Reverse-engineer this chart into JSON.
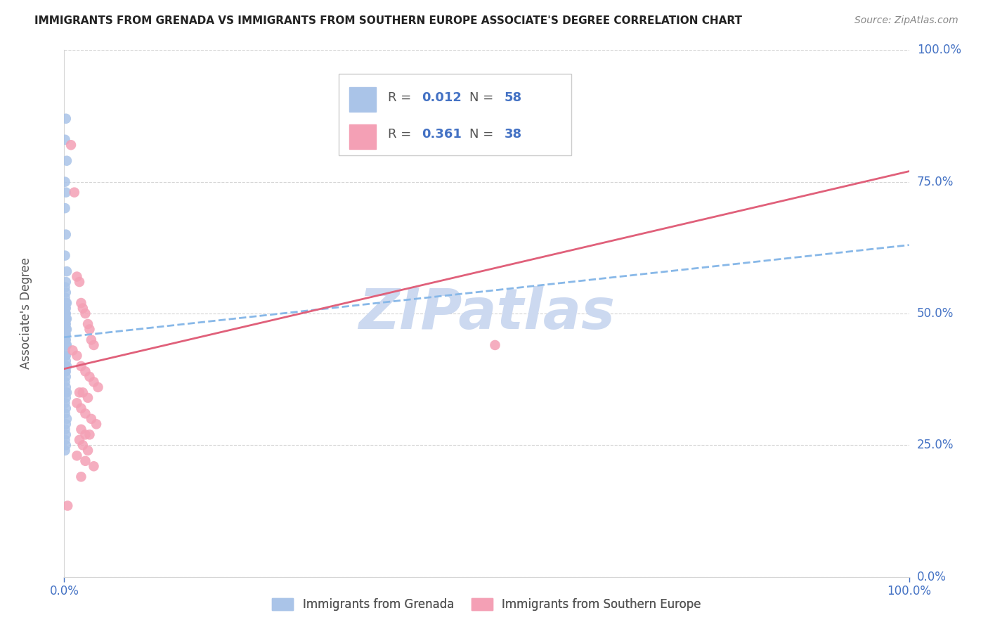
{
  "title": "IMMIGRANTS FROM GRENADA VS IMMIGRANTS FROM SOUTHERN EUROPE ASSOCIATE'S DEGREE CORRELATION CHART",
  "source": "Source: ZipAtlas.com",
  "ylabel": "Associate's Degree",
  "ytick_labels": [
    "0.0%",
    "25.0%",
    "50.0%",
    "75.0%",
    "100.0%"
  ],
  "ytick_values": [
    0.0,
    0.25,
    0.5,
    0.75,
    1.0
  ],
  "xtick_labels": [
    "0.0%",
    "100.0%"
  ],
  "xtick_values": [
    0.0,
    1.0
  ],
  "blue_R": 0.012,
  "blue_N": 58,
  "pink_R": 0.361,
  "pink_N": 38,
  "scatter_blue_x": [
    0.002,
    0.001,
    0.003,
    0.001,
    0.002,
    0.001,
    0.002,
    0.001,
    0.003,
    0.002,
    0.001,
    0.002,
    0.001,
    0.003,
    0.002,
    0.001,
    0.002,
    0.001,
    0.002,
    0.001,
    0.002,
    0.003,
    0.001,
    0.002,
    0.001,
    0.003,
    0.002,
    0.001,
    0.002,
    0.001,
    0.002,
    0.001,
    0.003,
    0.002,
    0.001,
    0.002,
    0.001,
    0.002,
    0.003,
    0.001,
    0.002,
    0.001,
    0.002,
    0.001,
    0.002,
    0.003,
    0.001,
    0.002,
    0.001,
    0.002,
    0.001,
    0.003,
    0.002,
    0.001,
    0.002,
    0.001,
    0.002,
    0.001
  ],
  "scatter_blue_y": [
    0.87,
    0.83,
    0.79,
    0.75,
    0.73,
    0.7,
    0.65,
    0.61,
    0.58,
    0.56,
    0.55,
    0.54,
    0.53,
    0.52,
    0.52,
    0.51,
    0.51,
    0.5,
    0.5,
    0.5,
    0.49,
    0.49,
    0.49,
    0.48,
    0.48,
    0.47,
    0.47,
    0.46,
    0.46,
    0.46,
    0.45,
    0.45,
    0.44,
    0.44,
    0.43,
    0.42,
    0.42,
    0.41,
    0.4,
    0.4,
    0.39,
    0.39,
    0.38,
    0.37,
    0.36,
    0.35,
    0.35,
    0.34,
    0.33,
    0.32,
    0.31,
    0.3,
    0.29,
    0.28,
    0.27,
    0.26,
    0.25,
    0.24
  ],
  "scatter_pink_x": [
    0.004,
    0.008,
    0.012,
    0.015,
    0.018,
    0.02,
    0.022,
    0.025,
    0.028,
    0.03,
    0.032,
    0.035,
    0.01,
    0.015,
    0.02,
    0.025,
    0.03,
    0.035,
    0.04,
    0.018,
    0.022,
    0.028,
    0.015,
    0.02,
    0.025,
    0.032,
    0.038,
    0.02,
    0.025,
    0.03,
    0.018,
    0.022,
    0.028,
    0.015,
    0.025,
    0.035,
    0.51,
    0.02
  ],
  "scatter_pink_y": [
    0.135,
    0.82,
    0.73,
    0.57,
    0.56,
    0.52,
    0.51,
    0.5,
    0.48,
    0.47,
    0.45,
    0.44,
    0.43,
    0.42,
    0.4,
    0.39,
    0.38,
    0.37,
    0.36,
    0.35,
    0.35,
    0.34,
    0.33,
    0.32,
    0.31,
    0.3,
    0.29,
    0.28,
    0.27,
    0.27,
    0.26,
    0.25,
    0.24,
    0.23,
    0.22,
    0.21,
    0.44,
    0.19
  ],
  "blue_trend_x0": 0.0,
  "blue_trend_x1": 1.0,
  "blue_trend_y0": 0.455,
  "blue_trend_y1": 0.63,
  "pink_trend_x0": 0.0,
  "pink_trend_x1": 1.0,
  "pink_trend_y0": 0.395,
  "pink_trend_y1": 0.77,
  "blue_scatter_color": "#aac4e8",
  "pink_scatter_color": "#f4a0b5",
  "blue_line_color": "#88b8e8",
  "pink_line_color": "#e0607a",
  "grid_color": "#d5d5d5",
  "axis_tick_color": "#4472c4",
  "bg_color": "#ffffff",
  "watermark_text": "ZIPatlas",
  "watermark_color": "#ccd9f0",
  "title_color": "#222222",
  "source_color": "#888888",
  "ylabel_color": "#555555",
  "legend_r_color": "#555555",
  "legend_n_color": "#4472c4",
  "legend_border_color": "#cccccc",
  "bottom_legend_color": "#555555"
}
